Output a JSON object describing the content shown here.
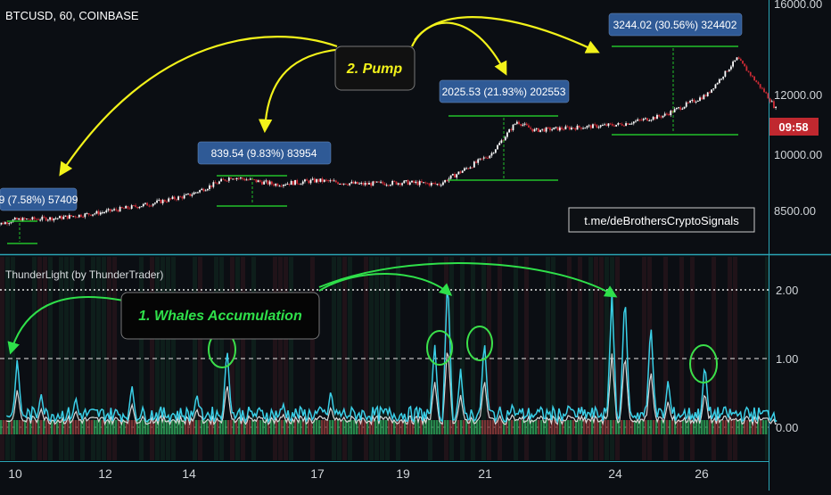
{
  "app": {
    "symbol_title": "BTCUSD, 60, COINBASE",
    "indicator_title": "ThunderLight (by ThunderTrader)",
    "watermark_link": "t.me/deBrothersCryptoSignals",
    "countdown": "09:58"
  },
  "annotations": {
    "pump_label": "2. Pump",
    "whales_label": "1. Whales Accumulation"
  },
  "measure_labels": [
    "9 (7.58%) 57409",
    "839.54 (9.83%) 83954",
    "2025.53 (21.93%) 202553",
    "3244.02 (30.56%) 324402"
  ],
  "colors": {
    "background": "#0b0e13",
    "up_candle": "#ffffff",
    "down_candle": "#d12b35",
    "measure_box": "#2f5a96",
    "measure_line": "#22c02a",
    "arrow": "#f2f21a",
    "green_arrow": "#2fe04a",
    "osc_cyan": "#3ad0e8",
    "osc_white": "#d8d8d8",
    "circle": "#3be04a",
    "divider": "#2aa5b5",
    "price_badge": "#c0282f"
  },
  "chart_data": [
    {
      "type": "candlestick",
      "title": "BTCUSD, 60, COINBASE",
      "x_ticks": [
        "10",
        "12",
        "14",
        "17",
        "19",
        "21",
        "24",
        "26"
      ],
      "y_ticks": [
        "8500.00",
        "10000.00",
        "12000.00",
        "16000.00"
      ],
      "price_path": [
        {
          "day": 9.5,
          "price": 8100
        },
        {
          "day": 10,
          "price": 8250
        },
        {
          "day": 11,
          "price": 8300
        },
        {
          "day": 12,
          "price": 8450
        },
        {
          "day": 13,
          "price": 8650
        },
        {
          "day": 14,
          "price": 8900
        },
        {
          "day": 15,
          "price": 9400
        },
        {
          "day": 16,
          "price": 9200
        },
        {
          "day": 17,
          "price": 9300
        },
        {
          "day": 18,
          "price": 9200
        },
        {
          "day": 19,
          "price": 9250
        },
        {
          "day": 19.8,
          "price": 9200
        },
        {
          "day": 21,
          "price": 10000
        },
        {
          "day": 21.6,
          "price": 11100
        },
        {
          "day": 22,
          "price": 10800
        },
        {
          "day": 23,
          "price": 10900
        },
        {
          "day": 24,
          "price": 11000
        },
        {
          "day": 25,
          "price": 11300
        },
        {
          "day": 26,
          "price": 12000
        },
        {
          "day": 26.7,
          "price": 13600
        },
        {
          "day": 27.2,
          "price": 12400
        },
        {
          "day": 27.6,
          "price": 11500
        }
      ]
    },
    {
      "type": "line",
      "title": "ThunderLight (by ThunderTrader)",
      "y_ticks": [
        "0.00",
        "1.00",
        "2.00"
      ],
      "levels": [
        0,
        1,
        2
      ],
      "spikes": [
        {
          "day": 10.05,
          "value": 1.02
        },
        {
          "day": 10.6,
          "value": 0.5
        },
        {
          "day": 11.4,
          "value": 0.45
        },
        {
          "day": 12.7,
          "value": 0.62
        },
        {
          "day": 14.2,
          "value": 0.5
        },
        {
          "day": 14.9,
          "value": 1.18
        },
        {
          "day": 16.2,
          "value": 0.35
        },
        {
          "day": 17.3,
          "value": 0.55
        },
        {
          "day": 19.7,
          "value": 1.25
        },
        {
          "day": 20.0,
          "value": 2.25
        },
        {
          "day": 20.3,
          "value": 0.85
        },
        {
          "day": 20.85,
          "value": 1.3
        },
        {
          "day": 21.5,
          "value": 0.35
        },
        {
          "day": 22.8,
          "value": 0.35
        },
        {
          "day": 23.8,
          "value": 1.95
        },
        {
          "day": 24.1,
          "value": 2.0
        },
        {
          "day": 24.7,
          "value": 1.55
        },
        {
          "day": 25.1,
          "value": 0.7
        },
        {
          "day": 25.95,
          "value": 0.95
        }
      ]
    }
  ]
}
